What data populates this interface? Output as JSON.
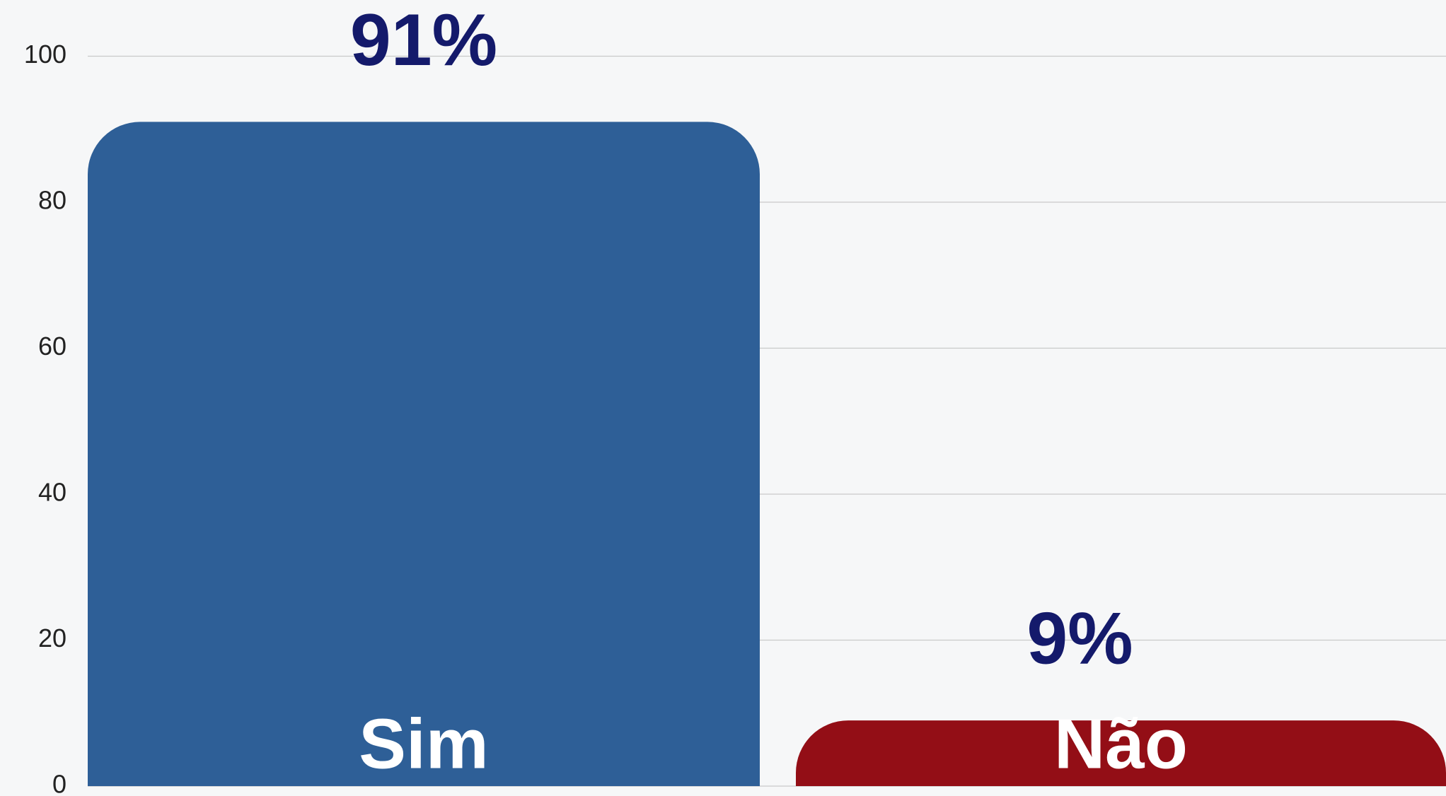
{
  "chart_data": {
    "type": "bar",
    "categories": [
      "Sim",
      "Não"
    ],
    "values": [
      91,
      9
    ],
    "value_labels": [
      "91%",
      "9%"
    ],
    "colors": [
      "#2e5f97",
      "#930e16"
    ],
    "ylim": [
      0,
      100
    ],
    "yticks": [
      0,
      20,
      40,
      60,
      80,
      100
    ],
    "grid": true
  }
}
